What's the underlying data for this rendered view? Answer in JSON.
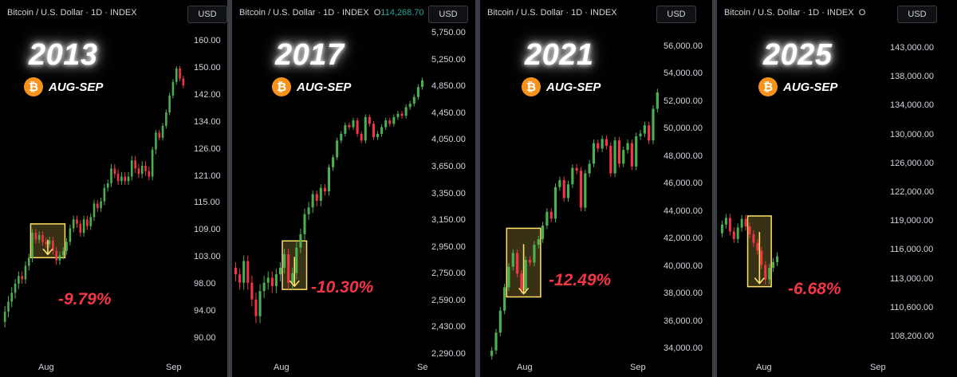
{
  "colors": {
    "up": "#4caf50",
    "down": "#f23645",
    "box": "#ffe066",
    "badge": "#f7931a",
    "pct": "#f23645"
  },
  "badge_icon": "bitcoin-icon",
  "chart_data": [
    {
      "type": "candlestick",
      "header": "Bitcoin / U.S. Dollar · 1D · INDEX",
      "currency": "USD",
      "year_label": "2013",
      "season_label": "AUG-SEP",
      "drawdown_label": "-9.79%",
      "y_ticks": [
        "160.00",
        "150.00",
        "142.00",
        "134.00",
        "126.00",
        "121.00",
        "115.00",
        "109.00",
        "103.00",
        "98.00",
        "94.00",
        "90.00"
      ],
      "x_labels": [
        "Aug",
        "Sep"
      ],
      "candles": [
        [
          92.5,
          94.0
        ],
        [
          94.0,
          95.5
        ],
        [
          95.5,
          96.8
        ],
        [
          96.8,
          98.2
        ],
        [
          98.2,
          99.6
        ],
        [
          99.6,
          99.0
        ],
        [
          99.0,
          101.5
        ],
        [
          101.5,
          103.0
        ],
        [
          103.0,
          108.5
        ],
        [
          108.5,
          107.0
        ],
        [
          107.0,
          108.0
        ],
        [
          108.0,
          106.5
        ],
        [
          106.5,
          106.0
        ],
        [
          106.0,
          106.8
        ],
        [
          106.8,
          104.5
        ],
        [
          104.5,
          102.5
        ],
        [
          102.5,
          103.5
        ],
        [
          103.5,
          104.5
        ],
        [
          104.5,
          106.5
        ],
        [
          106.5,
          109.5
        ],
        [
          109.5,
          111.5
        ],
        [
          111.5,
          110.5
        ],
        [
          110.5,
          108.5
        ],
        [
          108.5,
          111.5
        ],
        [
          111.5,
          110.0
        ],
        [
          110.0,
          112.0
        ],
        [
          112.0,
          115.0
        ],
        [
          115.0,
          114.0
        ],
        [
          114.0,
          115.5
        ],
        [
          115.5,
          118.5
        ],
        [
          118.5,
          119.5
        ],
        [
          119.5,
          122.5
        ],
        [
          122.5,
          121.5
        ],
        [
          121.5,
          120.0
        ],
        [
          120.0,
          121.0
        ],
        [
          121.0,
          120.0
        ],
        [
          120.0,
          121.0
        ],
        [
          121.0,
          124.0
        ],
        [
          124.0,
          122.5
        ],
        [
          122.5,
          121.5
        ],
        [
          121.5,
          123.0
        ],
        [
          123.0,
          122.0
        ],
        [
          122.0,
          121.0
        ],
        [
          121.0,
          126.0
        ],
        [
          126.0,
          131.0
        ],
        [
          131.0,
          129.5
        ],
        [
          129.5,
          133.0
        ],
        [
          133.0,
          137.0
        ],
        [
          137.0,
          142.0
        ],
        [
          142.0,
          146.0
        ],
        [
          146.0,
          150.0
        ],
        [
          150.0,
          147.0
        ],
        [
          147.0,
          145.0
        ]
      ],
      "box": {
        "high": 110.5,
        "low": 103.0,
        "start": 8,
        "end": 17
      }
    },
    {
      "type": "candlestick",
      "header": "Bitcoin / U.S. Dollar · 1D · INDEX",
      "ohlc_prefix": "O",
      "ohlc_value": "114,268.70",
      "currency": "USD",
      "year_label": "2017",
      "season_label": "AUG-SEP",
      "drawdown_label": "-10.30%",
      "y_ticks": [
        "5,750.00",
        "5,250.00",
        "4,850.00",
        "4,450.00",
        "4,050.00",
        "3,650.00",
        "3,350.00",
        "3,150.00",
        "2,950.00",
        "2,750.00",
        "2,590.00",
        "2,430.00",
        "2,290.00"
      ],
      "x_labels": [
        "Aug",
        "Se"
      ],
      "candles": [
        [
          2800,
          2750
        ],
        [
          2750,
          2700
        ],
        [
          2700,
          2850
        ],
        [
          2850,
          2700
        ],
        [
          2700,
          2600
        ],
        [
          2600,
          2500
        ],
        [
          2500,
          2650
        ],
        [
          2650,
          2700
        ],
        [
          2700,
          2730
        ],
        [
          2730,
          2680
        ],
        [
          2680,
          2750
        ],
        [
          2750,
          2800
        ],
        [
          2800,
          2900
        ],
        [
          2900,
          2700
        ],
        [
          2700,
          2760
        ],
        [
          2760,
          2950
        ],
        [
          2950,
          3050
        ],
        [
          3050,
          3200
        ],
        [
          3200,
          3250
        ],
        [
          3250,
          3350
        ],
        [
          3350,
          3300
        ],
        [
          3300,
          3420
        ],
        [
          3420,
          3380
        ],
        [
          3380,
          3650
        ],
        [
          3650,
          3800
        ],
        [
          3800,
          4050
        ],
        [
          4050,
          4150
        ],
        [
          4150,
          4280
        ],
        [
          4280,
          4250
        ],
        [
          4250,
          4350
        ],
        [
          4350,
          4150
        ],
        [
          4150,
          4050
        ],
        [
          4050,
          4400
        ],
        [
          4400,
          4300
        ],
        [
          4300,
          4100
        ],
        [
          4100,
          4150
        ],
        [
          4150,
          4250
        ],
        [
          4250,
          4350
        ],
        [
          4350,
          4300
        ],
        [
          4300,
          4400
        ],
        [
          4400,
          4450
        ],
        [
          4450,
          4420
        ],
        [
          4420,
          4550
        ],
        [
          4550,
          4600
        ],
        [
          4600,
          4700
        ],
        [
          4700,
          4850
        ],
        [
          4850,
          4950
        ]
      ],
      "box": {
        "high": 3000,
        "low": 2660,
        "start": 12,
        "end": 17
      }
    },
    {
      "type": "candlestick",
      "header": "Bitcoin / U.S. Dollar · 1D · INDEX",
      "currency": "USD",
      "year_label": "2021",
      "season_label": "AUG-SEP",
      "drawdown_label": "-12.49%",
      "y_ticks": [
        "56,000.00",
        "54,000.00",
        "52,000.00",
        "50,000.00",
        "48,000.00",
        "46,000.00",
        "44,000.00",
        "42,000.00",
        "40,000.00",
        "38,000.00",
        "36,000.00",
        "34,000.00"
      ],
      "x_labels": [
        "Aug",
        "Sep"
      ],
      "candles": [
        [
          33500,
          33900
        ],
        [
          33900,
          35200
        ],
        [
          35200,
          36800
        ],
        [
          36800,
          38500
        ],
        [
          38500,
          40000
        ],
        [
          40000,
          41000
        ],
        [
          41000,
          39500
        ],
        [
          39500,
          38300
        ],
        [
          38300,
          40500
        ],
        [
          40500,
          40300
        ],
        [
          40300,
          41600
        ],
        [
          41600,
          42000
        ],
        [
          42000,
          43000
        ],
        [
          43000,
          44000
        ],
        [
          44000,
          43500
        ],
        [
          43500,
          45800
        ],
        [
          45800,
          46300
        ],
        [
          46300,
          45000
        ],
        [
          45000,
          46000
        ],
        [
          46000,
          47200
        ],
        [
          47200,
          47000
        ],
        [
          47000,
          44300
        ],
        [
          44300,
          46800
        ],
        [
          46800,
          47500
        ],
        [
          47500,
          49000
        ],
        [
          49000,
          48600
        ],
        [
          48600,
          49300
        ],
        [
          49300,
          48800
        ],
        [
          48800,
          46800
        ],
        [
          46800,
          49200
        ],
        [
          49200,
          47500
        ],
        [
          47500,
          48500
        ],
        [
          48500,
          49000
        ],
        [
          49000,
          47300
        ],
        [
          47300,
          49500
        ],
        [
          49500,
          49700
        ],
        [
          49700,
          50300
        ],
        [
          50300,
          49200
        ],
        [
          49200,
          51500
        ],
        [
          51500,
          52700
        ]
      ],
      "box": {
        "high": 42800,
        "low": 37800,
        "start": 4,
        "end": 11
      }
    },
    {
      "type": "candlestick",
      "header": "Bitcoin / U.S. Dollar · 1D · INDEX",
      "ohlc_prefix": "O",
      "currency": "USD",
      "year_label": "2025",
      "season_label": "AUG-SEP",
      "drawdown_label": "-6.68%",
      "y_ticks": [
        "143,000.00",
        "138,000.00",
        "134,000.00",
        "130,000.00",
        "126,000.00",
        "122,000.00",
        "119,000.00",
        "116,000.00",
        "113,000.00",
        "110,600.00",
        "108,200.00"
      ],
      "x_labels": [
        "Aug",
        "Sep"
      ],
      "candles": [
        [
          117800,
          118700
        ],
        [
          118700,
          119400
        ],
        [
          119400,
          118000
        ],
        [
          118000,
          117200
        ],
        [
          117200,
          118400
        ],
        [
          118400,
          119300
        ],
        [
          119300,
          118500
        ],
        [
          118500,
          117700
        ],
        [
          117700,
          116800
        ],
        [
          116800,
          116000
        ],
        [
          116000,
          114500
        ],
        [
          114500,
          113000
        ],
        [
          113000,
          114200
        ],
        [
          114200,
          114800
        ],
        [
          114800,
          115400
        ]
      ],
      "box": {
        "high": 119600,
        "low": 112400,
        "start": 7,
        "end": 12
      }
    }
  ]
}
